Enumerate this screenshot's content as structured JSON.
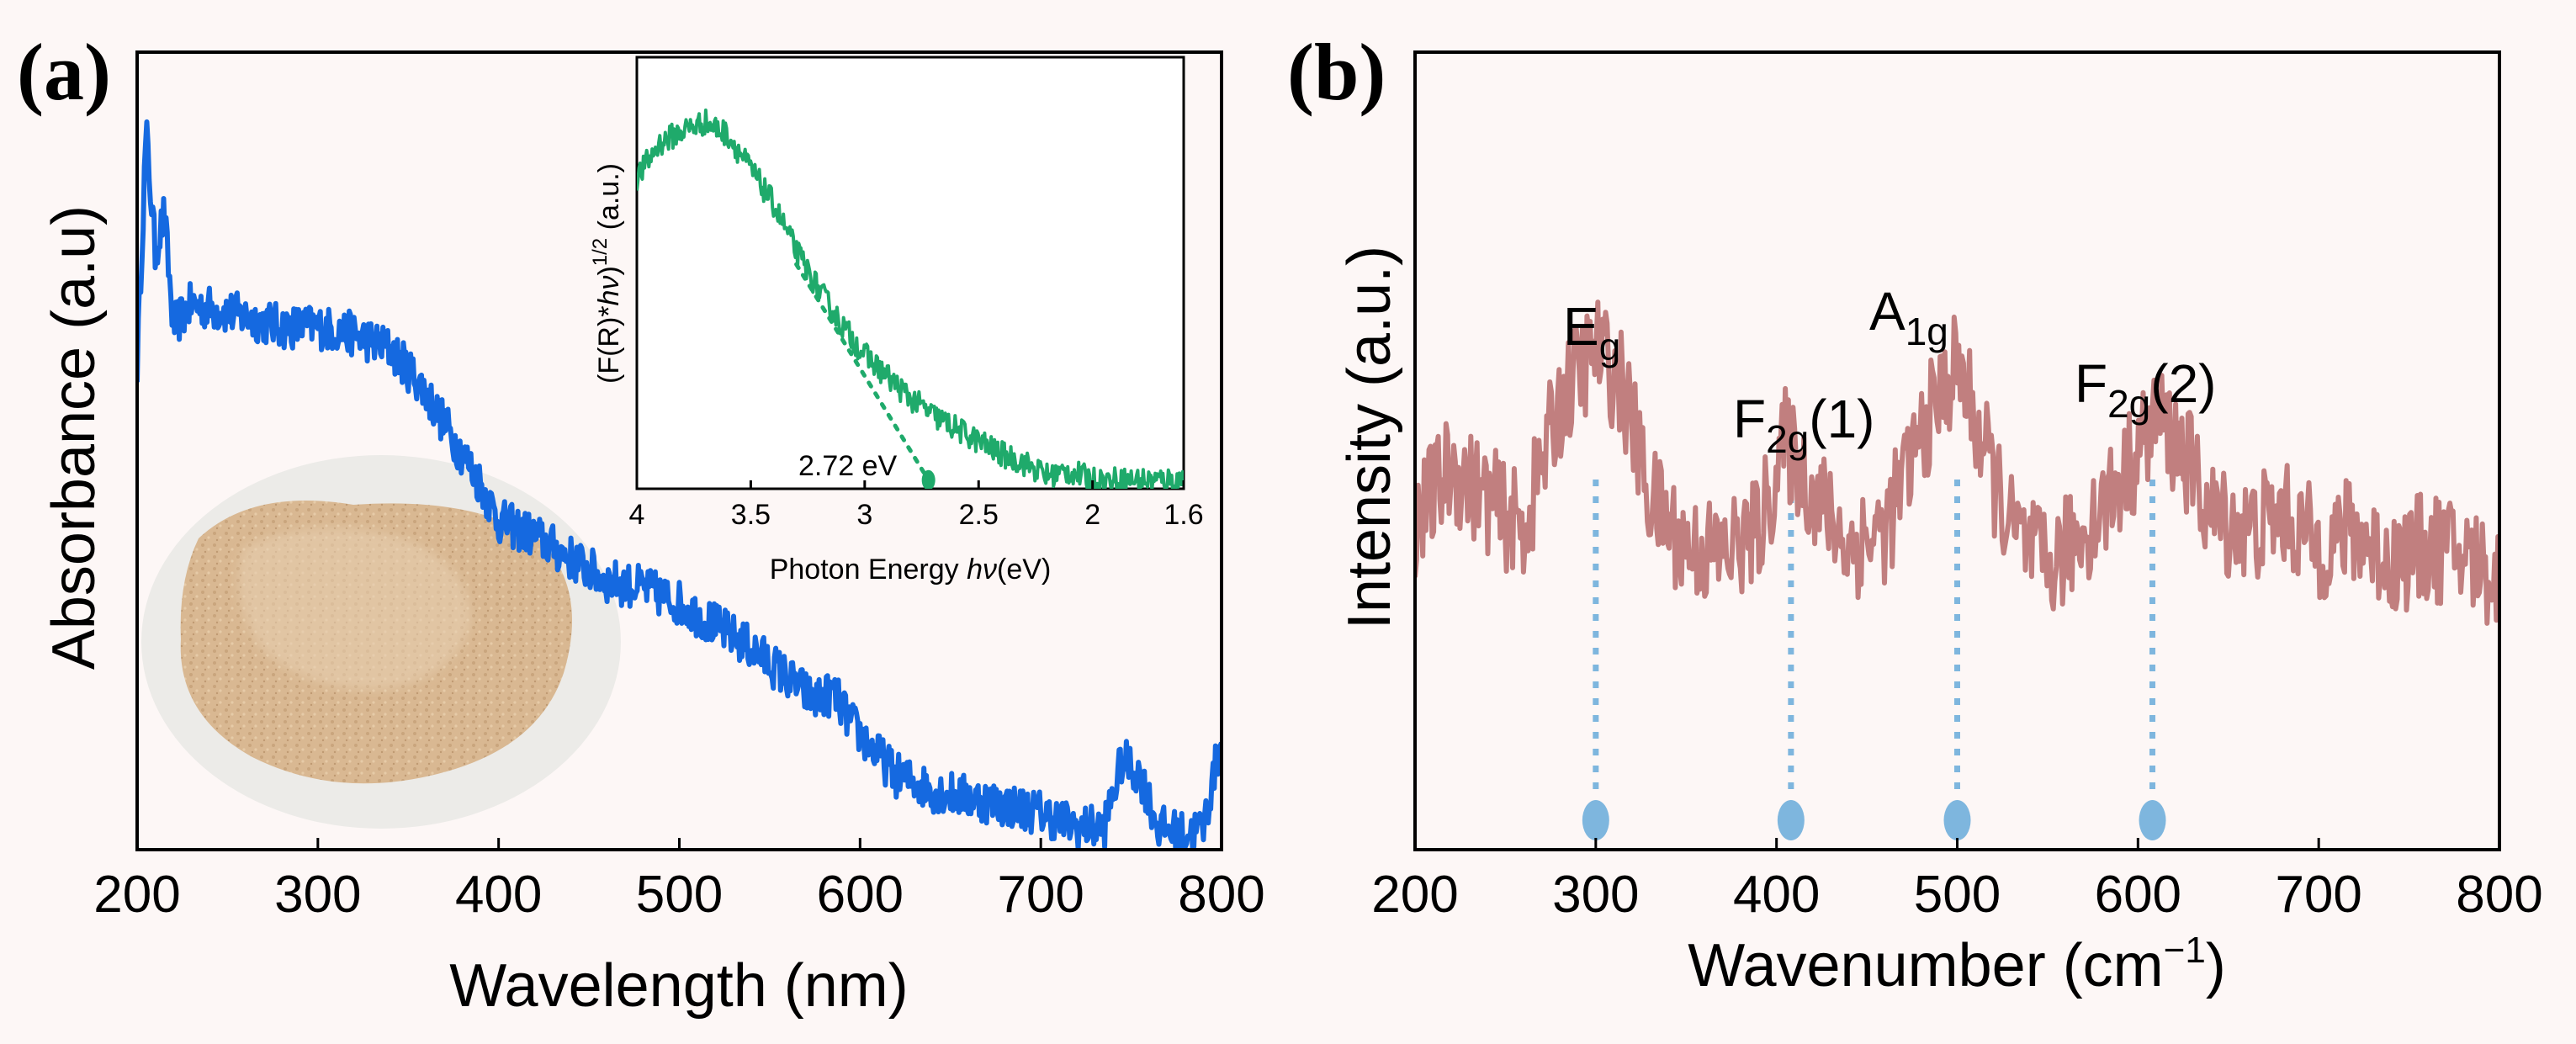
{
  "colors": {
    "background": "#fdf7f6",
    "absorbance_line": "#1569e0",
    "inset_line": "#1faa6b",
    "raman_line": "#c17f7f",
    "peak_marker": "#7eb6de",
    "powder_photo": "#d9b892"
  },
  "icons": [
    "powder-sample-photo"
  ],
  "chart_data": [
    {
      "id": "a",
      "panel_label": "(a)",
      "type": "line",
      "title": "",
      "xlabel": "Wavelength (nm)",
      "ylabel": "Absorbance (a.u)",
      "xlim": [
        200,
        800
      ],
      "ylim": [
        0,
        1
      ],
      "xticks": [
        200,
        300,
        400,
        500,
        600,
        700,
        800
      ],
      "series": [
        {
          "name": "Absorbance",
          "noise": 0.03,
          "x": [
            200,
            205,
            210,
            215,
            220,
            230,
            250,
            280,
            300,
            320,
            340,
            355,
            370,
            390,
            400,
            420,
            440,
            460,
            480,
            500,
            520,
            540,
            560,
            575,
            585,
            595,
            605,
            620,
            640,
            660,
            680,
            700,
            720,
            735,
            745,
            755,
            765,
            780,
            790,
            800
          ],
          "y": [
            0.65,
            0.96,
            0.8,
            0.85,
            0.7,
            0.73,
            0.72,
            0.7,
            0.7,
            0.69,
            0.67,
            0.63,
            0.57,
            0.49,
            0.44,
            0.42,
            0.39,
            0.36,
            0.35,
            0.33,
            0.3,
            0.27,
            0.23,
            0.2,
            0.21,
            0.17,
            0.14,
            0.1,
            0.08,
            0.07,
            0.06,
            0.05,
            0.03,
            0.03,
            0.12,
            0.1,
            0.03,
            0.02,
            0.03,
            0.15
          ]
        }
      ],
      "inset": {
        "type": "line",
        "xlabel_pre": "Photon Energy ",
        "xlabel_hv": "hν",
        "xlabel_post": "(eV)",
        "ylabel_pre": "(F(R)*",
        "ylabel_hv": "hν",
        "ylabel_post": ")",
        "ylabel_sup": "1/2",
        "ylabel_unit": " (a.u.)",
        "xlim": [
          4,
          1.6
        ],
        "ylim": [
          0,
          1
        ],
        "xticks": [
          4,
          3.5,
          3,
          2.5,
          2,
          1.6
        ],
        "xtick_labels": [
          "4",
          "3.5",
          "3",
          "2.5",
          "2",
          "1.6"
        ],
        "annotation": "2.72 eV",
        "band_gap": 2.72,
        "tangent": {
          "x": [
            3.3,
            2.72
          ],
          "y": [
            0.52,
            0.02
          ]
        },
        "series": [
          {
            "name": "Tauc plot",
            "noise": 0.03,
            "x": [
              4.0,
              3.9,
              3.8,
              3.7,
              3.6,
              3.5,
              3.4,
              3.3,
              3.2,
              3.1,
              3.0,
              2.9,
              2.8,
              2.7,
              2.6,
              2.5,
              2.4,
              2.3,
              2.2,
              2.1,
              2.0,
              1.9,
              1.8,
              1.7,
              1.6
            ],
            "y": [
              0.72,
              0.8,
              0.83,
              0.85,
              0.82,
              0.74,
              0.66,
              0.55,
              0.46,
              0.38,
              0.31,
              0.26,
              0.21,
              0.17,
              0.14,
              0.11,
              0.08,
              0.06,
              0.03,
              0.04,
              0.02,
              0.02,
              0.02,
              0.02,
              0.02
            ]
          }
        ]
      }
    },
    {
      "id": "b",
      "panel_label": "(b)",
      "type": "line",
      "title": "",
      "xlabel_main": "Wavenumber (cm",
      "xlabel_sup": "−1",
      "xlabel_close": ")",
      "ylabel": "Intensity (a.u.)",
      "xlim": [
        200,
        800
      ],
      "ylim": [
        0,
        1
      ],
      "xticks": [
        200,
        300,
        400,
        500,
        600,
        700,
        800
      ],
      "series": [
        {
          "name": "Raman",
          "noise": 0.07,
          "x": [
            200,
            220,
            240,
            260,
            280,
            300,
            315,
            330,
            350,
            370,
            390,
            405,
            420,
            440,
            460,
            480,
            500,
            515,
            530,
            550,
            570,
            590,
            610,
            625,
            640,
            660,
            680,
            700,
            720,
            740,
            760,
            780,
            800
          ],
          "y": [
            0.41,
            0.48,
            0.44,
            0.4,
            0.56,
            0.63,
            0.58,
            0.44,
            0.38,
            0.37,
            0.4,
            0.51,
            0.45,
            0.38,
            0.4,
            0.52,
            0.61,
            0.5,
            0.4,
            0.35,
            0.4,
            0.46,
            0.54,
            0.5,
            0.42,
            0.4,
            0.42,
            0.38,
            0.4,
            0.36,
            0.38,
            0.37,
            0.34
          ]
        }
      ],
      "peaks": [
        {
          "name": "Eg",
          "main": "E",
          "sub": "g",
          "suffix": "",
          "x": 300
        },
        {
          "name": "F2g(1)",
          "main": "F",
          "sub": "2g",
          "suffix": "(1)",
          "x": 408
        },
        {
          "name": "A1g",
          "main": "A",
          "sub": "1g",
          "suffix": "",
          "x": 500
        },
        {
          "name": "F2g(2)",
          "main": "F",
          "sub": "2g",
          "suffix": "(2)",
          "x": 608
        }
      ]
    }
  ]
}
